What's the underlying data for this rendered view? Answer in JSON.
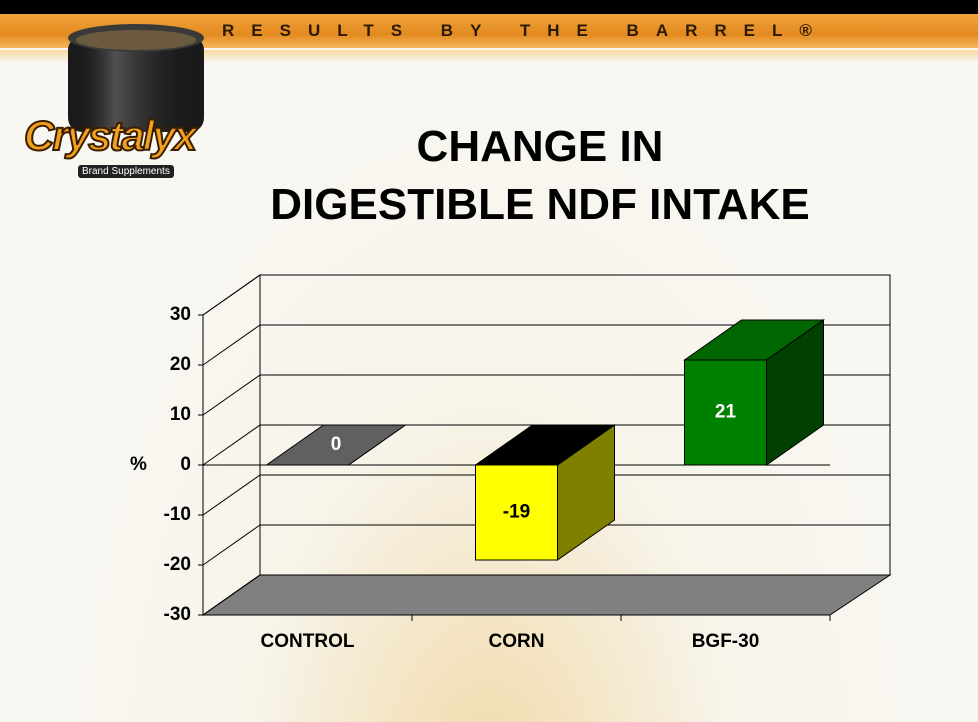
{
  "header": {
    "tagline": "RESULTS BY THE BARREL®",
    "logo": "Crystalyx",
    "logo_sub": "Brand Supplements"
  },
  "chart_data": {
    "type": "bar3d",
    "title": "CHANGE IN\nDIGESTIBLE NDF INTAKE",
    "ylabel": "%",
    "categories": [
      "CONTROL",
      "CORN",
      "BGF-30"
    ],
    "values": [
      0,
      -19,
      21
    ],
    "colors": [
      "#606060",
      "#ffff00",
      "#008000"
    ],
    "ylim": [
      -30,
      30
    ],
    "yticks": [
      -30,
      -20,
      -10,
      0,
      10,
      20,
      30
    ],
    "grid": true
  }
}
